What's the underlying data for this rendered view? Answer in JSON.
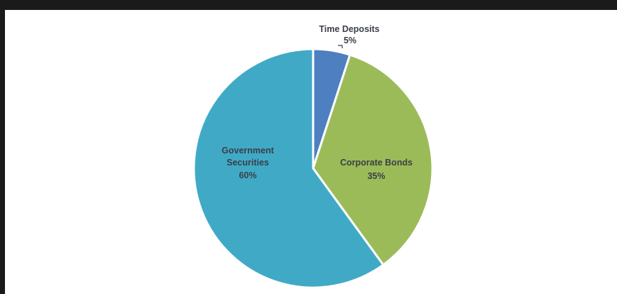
{
  "chart_data": {
    "type": "pie",
    "title": "",
    "start_angle_deg": 0,
    "direction": "clockwise",
    "slices": [
      {
        "label": "Time Deposits",
        "value": 5,
        "display": "5%",
        "color": "#4e7fc1"
      },
      {
        "label": "Corporate Bonds",
        "value": 35,
        "display": "35%",
        "color": "#9bbb59"
      },
      {
        "label": [
          "Government",
          "Securities"
        ],
        "value": 60,
        "display": "60%",
        "color": "#40aac6"
      }
    ],
    "slice_border_color": "#ffffff",
    "label_color": "#3a3f47"
  }
}
